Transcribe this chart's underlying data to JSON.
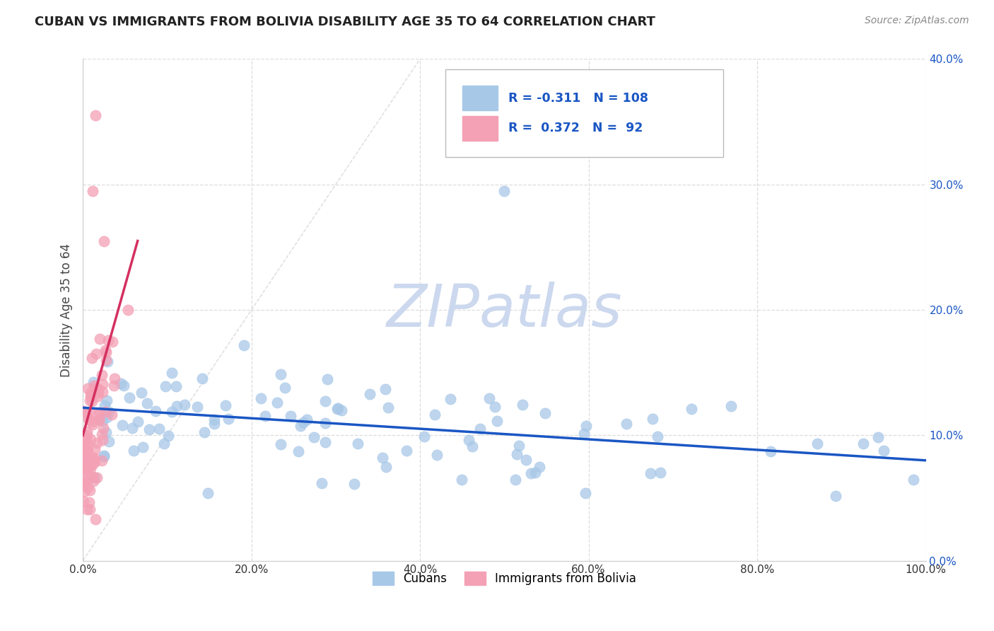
{
  "title": "CUBAN VS IMMIGRANTS FROM BOLIVIA DISABILITY AGE 35 TO 64 CORRELATION CHART",
  "source": "Source: ZipAtlas.com",
  "ylabel": "Disability Age 35 to 64",
  "xlim": [
    0.0,
    1.0
  ],
  "ylim": [
    0.0,
    0.4
  ],
  "xticks": [
    0.0,
    0.2,
    0.4,
    0.6,
    0.8,
    1.0
  ],
  "xticklabels": [
    "0.0%",
    "20.0%",
    "40.0%",
    "60.0%",
    "80.0%",
    "100.0%"
  ],
  "yticks": [
    0.0,
    0.1,
    0.2,
    0.3,
    0.4
  ],
  "yticklabels": [
    "0.0%",
    "10.0%",
    "20.0%",
    "30.0%",
    "40.0%"
  ],
  "legend_cuban_R": "-0.311",
  "legend_cuban_N": "108",
  "legend_bolivia_R": "0.372",
  "legend_bolivia_N": "92",
  "cuban_color": "#a8c8e8",
  "bolivia_color": "#f4a0b5",
  "trendline_cuban_color": "#1a56c4",
  "trendline_bolivia_color": "#d43060",
  "refline_color": "#cccccc",
  "grid_color": "#dddddd",
  "watermark_color": "#ccd8ee",
  "legend_text_color": "#1a56c4",
  "watermark_text": "ZIPatlas"
}
